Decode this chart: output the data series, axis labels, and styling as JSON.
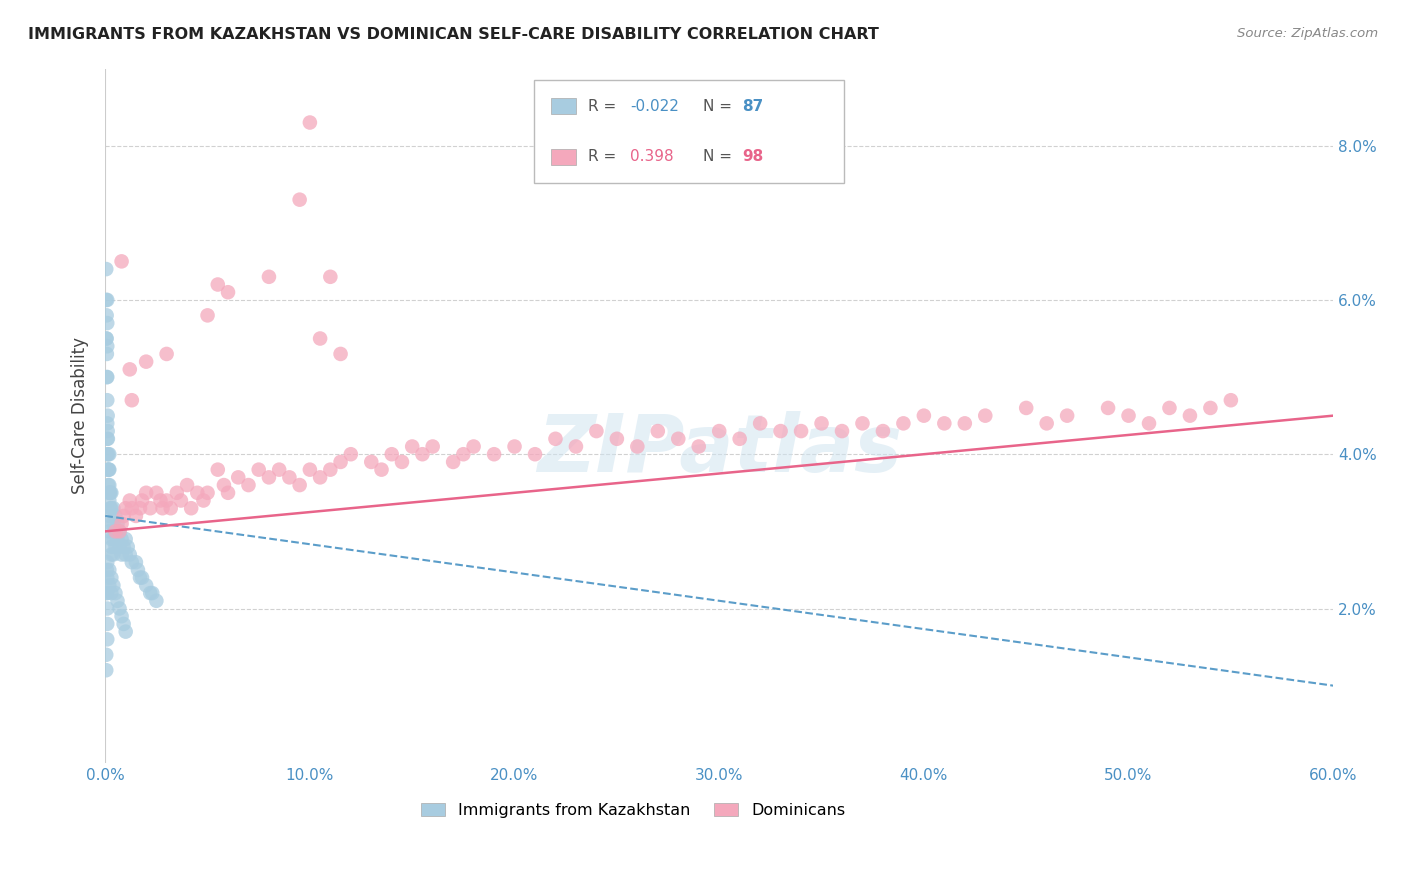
{
  "title": "IMMIGRANTS FROM KAZAKHSTAN VS DOMINICAN SELF-CARE DISABILITY CORRELATION CHART",
  "source": "Source: ZipAtlas.com",
  "ylabel": "Self-Care Disability",
  "xlim": [
    0.0,
    0.6
  ],
  "ylim": [
    0.0,
    0.09
  ],
  "xticks": [
    0.0,
    0.1,
    0.2,
    0.3,
    0.4,
    0.5,
    0.6
  ],
  "xtick_labels": [
    "0.0%",
    "10.0%",
    "20.0%",
    "30.0%",
    "40.0%",
    "50.0%",
    "60.0%"
  ],
  "yticks": [
    0.02,
    0.04,
    0.06,
    0.08
  ],
  "right_ytick_labels": [
    "2.0%",
    "4.0%",
    "6.0%",
    "8.0%"
  ],
  "legend_R1": "-0.022",
  "legend_N1": "87",
  "legend_R2": "0.398",
  "legend_N2": "98",
  "color_kaz": "#a8cce0",
  "color_dom": "#f4a8bc",
  "color_kaz_line": "#5b9dc9",
  "color_dom_line": "#e8648a",
  "background_color": "#ffffff",
  "watermark": "ZIPatlas",
  "kaz_x": [
    0.0005,
    0.0005,
    0.0005,
    0.0007,
    0.0007,
    0.0008,
    0.0008,
    0.001,
    0.001,
    0.001,
    0.001,
    0.001,
    0.001,
    0.001,
    0.001,
    0.001,
    0.0012,
    0.0012,
    0.0013,
    0.0015,
    0.0015,
    0.0015,
    0.0018,
    0.0018,
    0.002,
    0.002,
    0.002,
    0.002,
    0.002,
    0.002,
    0.0022,
    0.0025,
    0.0025,
    0.003,
    0.003,
    0.003,
    0.003,
    0.003,
    0.003,
    0.004,
    0.004,
    0.004,
    0.004,
    0.005,
    0.005,
    0.005,
    0.006,
    0.006,
    0.007,
    0.007,
    0.008,
    0.008,
    0.009,
    0.01,
    0.01,
    0.011,
    0.012,
    0.013,
    0.015,
    0.016,
    0.017,
    0.018,
    0.02,
    0.022,
    0.023,
    0.025,
    0.001,
    0.001,
    0.001,
    0.001,
    0.0008,
    0.0006,
    0.0005,
    0.0005,
    0.001,
    0.001,
    0.002,
    0.002,
    0.003,
    0.003,
    0.004,
    0.005,
    0.006,
    0.007,
    0.008,
    0.009,
    0.01
  ],
  "kaz_y": [
    0.064,
    0.06,
    0.055,
    0.058,
    0.055,
    0.053,
    0.05,
    0.06,
    0.057,
    0.054,
    0.05,
    0.047,
    0.044,
    0.042,
    0.04,
    0.038,
    0.045,
    0.043,
    0.042,
    0.04,
    0.038,
    0.036,
    0.038,
    0.035,
    0.04,
    0.038,
    0.036,
    0.034,
    0.032,
    0.03,
    0.035,
    0.035,
    0.033,
    0.035,
    0.033,
    0.031,
    0.029,
    0.028,
    0.027,
    0.033,
    0.031,
    0.029,
    0.027,
    0.032,
    0.03,
    0.028,
    0.031,
    0.029,
    0.03,
    0.028,
    0.029,
    0.027,
    0.028,
    0.029,
    0.027,
    0.028,
    0.027,
    0.026,
    0.026,
    0.025,
    0.024,
    0.024,
    0.023,
    0.022,
    0.022,
    0.021,
    0.022,
    0.02,
    0.018,
    0.016,
    0.025,
    0.022,
    0.014,
    0.012,
    0.026,
    0.024,
    0.025,
    0.023,
    0.024,
    0.022,
    0.023,
    0.022,
    0.021,
    0.02,
    0.019,
    0.018,
    0.017
  ],
  "dom_x": [
    0.005,
    0.007,
    0.008,
    0.009,
    0.01,
    0.012,
    0.013,
    0.015,
    0.017,
    0.018,
    0.02,
    0.022,
    0.025,
    0.027,
    0.028,
    0.03,
    0.032,
    0.035,
    0.037,
    0.04,
    0.042,
    0.045,
    0.048,
    0.05,
    0.055,
    0.058,
    0.06,
    0.065,
    0.07,
    0.075,
    0.08,
    0.085,
    0.09,
    0.095,
    0.1,
    0.105,
    0.11,
    0.115,
    0.12,
    0.13,
    0.135,
    0.14,
    0.145,
    0.15,
    0.155,
    0.16,
    0.17,
    0.175,
    0.18,
    0.19,
    0.2,
    0.21,
    0.22,
    0.23,
    0.24,
    0.25,
    0.26,
    0.27,
    0.28,
    0.29,
    0.3,
    0.31,
    0.32,
    0.33,
    0.34,
    0.35,
    0.36,
    0.37,
    0.38,
    0.39,
    0.4,
    0.41,
    0.42,
    0.43,
    0.45,
    0.46,
    0.47,
    0.49,
    0.5,
    0.51,
    0.52,
    0.53,
    0.54,
    0.55,
    0.105,
    0.115,
    0.11,
    0.012,
    0.013,
    0.008,
    0.055,
    0.06,
    0.08,
    0.095,
    0.1,
    0.05,
    0.03,
    0.02
  ],
  "dom_y": [
    0.03,
    0.03,
    0.031,
    0.032,
    0.033,
    0.034,
    0.033,
    0.032,
    0.033,
    0.034,
    0.035,
    0.033,
    0.035,
    0.034,
    0.033,
    0.034,
    0.033,
    0.035,
    0.034,
    0.036,
    0.033,
    0.035,
    0.034,
    0.035,
    0.038,
    0.036,
    0.035,
    0.037,
    0.036,
    0.038,
    0.037,
    0.038,
    0.037,
    0.036,
    0.038,
    0.037,
    0.038,
    0.039,
    0.04,
    0.039,
    0.038,
    0.04,
    0.039,
    0.041,
    0.04,
    0.041,
    0.039,
    0.04,
    0.041,
    0.04,
    0.041,
    0.04,
    0.042,
    0.041,
    0.043,
    0.042,
    0.041,
    0.043,
    0.042,
    0.041,
    0.043,
    0.042,
    0.044,
    0.043,
    0.043,
    0.044,
    0.043,
    0.044,
    0.043,
    0.044,
    0.045,
    0.044,
    0.044,
    0.045,
    0.046,
    0.044,
    0.045,
    0.046,
    0.045,
    0.044,
    0.046,
    0.045,
    0.046,
    0.047,
    0.055,
    0.053,
    0.063,
    0.051,
    0.047,
    0.065,
    0.062,
    0.061,
    0.063,
    0.073,
    0.083,
    0.058,
    0.053,
    0.052
  ]
}
